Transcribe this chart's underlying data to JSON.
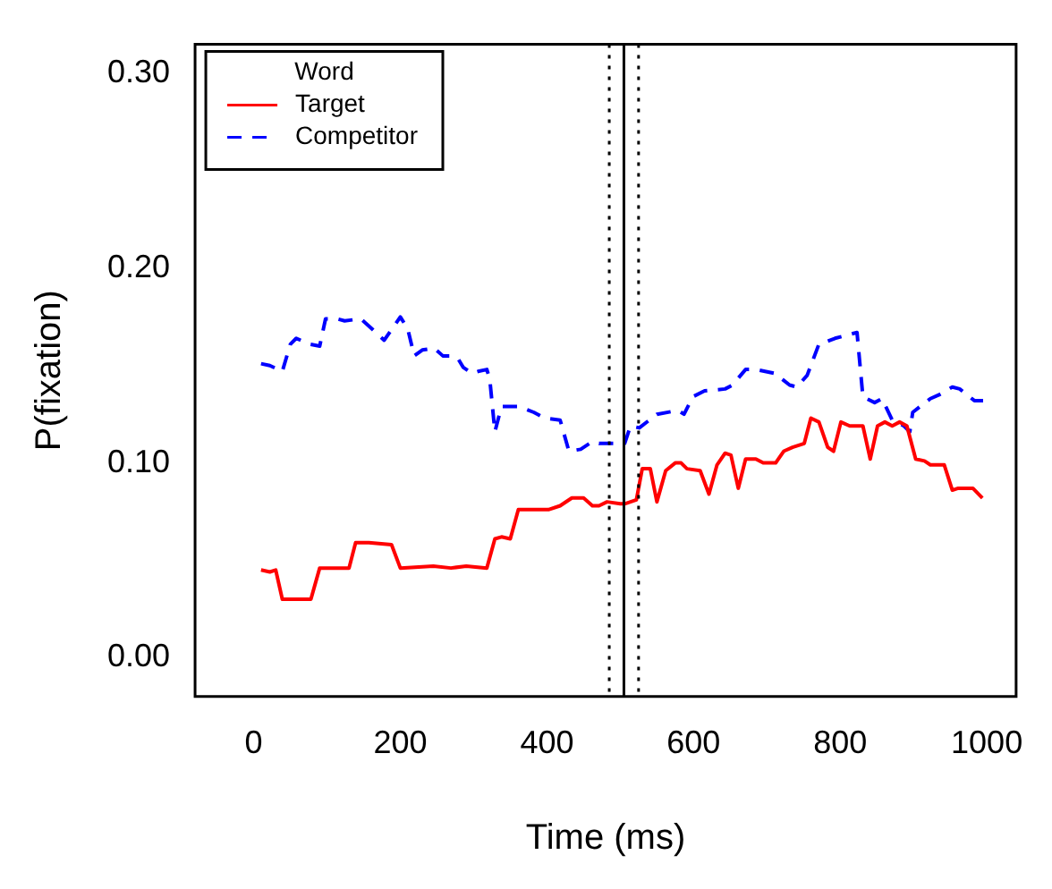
{
  "chart_data": {
    "type": "line",
    "xlabel": "Time (ms)",
    "ylabel": "P(fixation)",
    "legend_title": "Word",
    "legend": "top left",
    "grid": false,
    "marker": "none",
    "xlim": [
      -80,
      1040
    ],
    "xticks": [
      0,
      200,
      400,
      600,
      800,
      1000
    ],
    "ylim": [
      -0.02,
      0.315
    ],
    "yticks": [
      {
        "value": 0,
        "label": "0.00"
      },
      {
        "value": 0.1,
        "label": "0.10"
      },
      {
        "value": 0.2,
        "label": "0.20"
      },
      {
        "value": 0.3,
        "label": "0.30"
      }
    ],
    "ref_lines": [
      {
        "axis": "x",
        "value": 505,
        "color": "#000000",
        "line_style": "solid"
      },
      {
        "axis": "x",
        "value": 485,
        "color": "#000000",
        "line_style": "dotted"
      },
      {
        "axis": "x",
        "value": 525,
        "color": "#000000",
        "line_style": "dotted"
      }
    ],
    "series": [
      {
        "name": "Target",
        "color": "#ff0000",
        "line_style": "solid",
        "x": [
          10,
          22,
          30,
          39,
          78,
          90,
          130,
          139,
          157,
          188,
          200,
          245,
          269,
          290,
          318,
          329,
          338,
          350,
          361,
          402,
          418,
          434,
          450,
          462,
          471,
          482,
          500,
          506,
          522,
          530,
          541,
          550,
          562,
          575,
          583,
          591,
          609,
          621,
          632,
          643,
          651,
          661,
          671,
          685,
          695,
          712,
          723,
          735,
          751,
          760,
          771,
          783,
          791,
          801,
          813,
          831,
          841,
          851,
          861,
          871,
          881,
          891,
          903,
          915,
          923,
          942,
          953,
          961,
          981,
          994
        ],
        "values": [
          0.045,
          0.044,
          0.045,
          0.03,
          0.03,
          0.046,
          0.046,
          0.059,
          0.059,
          0.058,
          0.046,
          0.047,
          0.046,
          0.047,
          0.046,
          0.061,
          0.062,
          0.061,
          0.076,
          0.076,
          0.078,
          0.082,
          0.082,
          0.078,
          0.078,
          0.08,
          0.079,
          0.079,
          0.081,
          0.097,
          0.097,
          0.08,
          0.096,
          0.1,
          0.1,
          0.097,
          0.096,
          0.084,
          0.099,
          0.105,
          0.104,
          0.087,
          0.102,
          0.102,
          0.1,
          0.1,
          0.106,
          0.108,
          0.11,
          0.123,
          0.121,
          0.108,
          0.106,
          0.121,
          0.119,
          0.119,
          0.102,
          0.119,
          0.121,
          0.119,
          0.121,
          0.119,
          0.102,
          0.101,
          0.099,
          0.099,
          0.086,
          0.087,
          0.087,
          0.082
        ]
      },
      {
        "name": "Competitor",
        "color": "#0000ff",
        "line_style": "dashed",
        "x": [
          10,
          22,
          39,
          50,
          58,
          76,
          90,
          98,
          114,
          124,
          146,
          158,
          178,
          200,
          210,
          219,
          230,
          246,
          258,
          268,
          278,
          286,
          298,
          306,
          318,
          322,
          329,
          338,
          362,
          382,
          397,
          418,
          430,
          446,
          462,
          471,
          482,
          498,
          506,
          514,
          526,
          550,
          579,
          587,
          599,
          615,
          643,
          653,
          671,
          685,
          711,
          731,
          741,
          755,
          771,
          779,
          793,
          803,
          823,
          831,
          847,
          857,
          871,
          887,
          895,
          899,
          923,
          935,
          953,
          963,
          983,
          995
        ],
        "values": [
          0.151,
          0.15,
          0.147,
          0.161,
          0.164,
          0.161,
          0.16,
          0.174,
          0.174,
          0.173,
          0.174,
          0.17,
          0.163,
          0.175,
          0.169,
          0.155,
          0.158,
          0.159,
          0.155,
          0.155,
          0.154,
          0.149,
          0.146,
          0.147,
          0.148,
          0.143,
          0.116,
          0.129,
          0.129,
          0.126,
          0.123,
          0.122,
          0.106,
          0.107,
          0.111,
          0.11,
          0.11,
          0.11,
          0.11,
          0.119,
          0.118,
          0.125,
          0.127,
          0.125,
          0.134,
          0.137,
          0.138,
          0.14,
          0.148,
          0.148,
          0.146,
          0.14,
          0.139,
          0.145,
          0.161,
          0.162,
          0.164,
          0.165,
          0.167,
          0.134,
          0.131,
          0.133,
          0.122,
          0.119,
          0.116,
          0.126,
          0.133,
          0.135,
          0.139,
          0.138,
          0.132,
          0.132
        ]
      }
    ]
  }
}
